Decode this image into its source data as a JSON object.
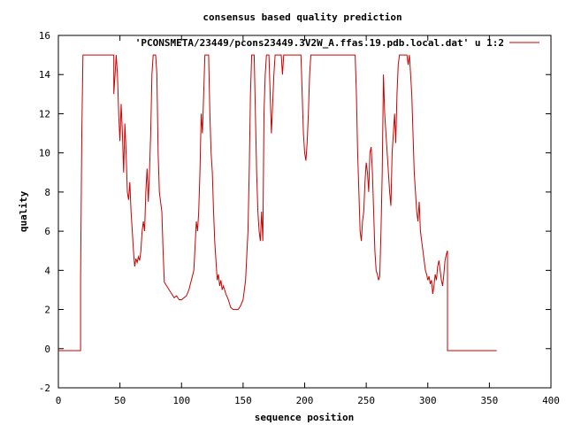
{
  "chart_data": {
    "type": "line",
    "title": "consensus based quality prediction",
    "xlabel": "sequence position",
    "ylabel": "quality",
    "xlim": [
      0,
      400
    ],
    "ylim": [
      -2,
      16
    ],
    "x_ticks": [
      0,
      50,
      100,
      150,
      200,
      250,
      300,
      350,
      400
    ],
    "y_ticks": [
      -2,
      0,
      2,
      4,
      6,
      8,
      10,
      12,
      14,
      16
    ],
    "x_tick_labels": [
      "0",
      "50",
      "100",
      "150",
      "200",
      "250",
      "300",
      "350",
      "400"
    ],
    "y_tick_labels": [
      "-2",
      "0",
      "2",
      "4",
      "6",
      "8",
      "10",
      "12",
      "14",
      "16"
    ],
    "grid": false,
    "legend_position": "top-right",
    "series": [
      {
        "name": "'PCONSMETA/23449/pcons23449.3V2W_A.ffas.19.pdb.local.dat' u 1:2",
        "color": "#cc0000",
        "points": [
          [
            0,
            -0.1
          ],
          [
            18,
            -0.1
          ],
          [
            18,
            3.5
          ],
          [
            19,
            11
          ],
          [
            20,
            15
          ],
          [
            45,
            15
          ],
          [
            45,
            13
          ],
          [
            46,
            14
          ],
          [
            47,
            15
          ],
          [
            48,
            14
          ],
          [
            49,
            12
          ],
          [
            50,
            10.6
          ],
          [
            51,
            12.5
          ],
          [
            52,
            11
          ],
          [
            53,
            9
          ],
          [
            54,
            11.5
          ],
          [
            55,
            10
          ],
          [
            56,
            8
          ],
          [
            57,
            7.6
          ],
          [
            58,
            8.5
          ],
          [
            59,
            7
          ],
          [
            60,
            6
          ],
          [
            61,
            5
          ],
          [
            62,
            4.2
          ],
          [
            63,
            4.6
          ],
          [
            64,
            4.4
          ],
          [
            65,
            4.7
          ],
          [
            66,
            4.5
          ],
          [
            67,
            5
          ],
          [
            68,
            6
          ],
          [
            69,
            6.5
          ],
          [
            70,
            6
          ],
          [
            71,
            8
          ],
          [
            72,
            9.2
          ],
          [
            73,
            7.5
          ],
          [
            74,
            9
          ],
          [
            75,
            11
          ],
          [
            76,
            14
          ],
          [
            77,
            15
          ],
          [
            78,
            15
          ],
          [
            79,
            15
          ],
          [
            80,
            14
          ],
          [
            81,
            10
          ],
          [
            82,
            8
          ],
          [
            83,
            7.5
          ],
          [
            84,
            7
          ],
          [
            85,
            5
          ],
          [
            86,
            3.4
          ],
          [
            88,
            3.2
          ],
          [
            90,
            3
          ],
          [
            92,
            2.8
          ],
          [
            94,
            2.6
          ],
          [
            96,
            2.7
          ],
          [
            98,
            2.5
          ],
          [
            100,
            2.5
          ],
          [
            102,
            2.6
          ],
          [
            104,
            2.7
          ],
          [
            106,
            3
          ],
          [
            108,
            3.5
          ],
          [
            110,
            4
          ],
          [
            112,
            6.5
          ],
          [
            113,
            6
          ],
          [
            114,
            7
          ],
          [
            115,
            9
          ],
          [
            116,
            12
          ],
          [
            117,
            11
          ],
          [
            118,
            13
          ],
          [
            119,
            15
          ],
          [
            122,
            15
          ],
          [
            123,
            12
          ],
          [
            124,
            10
          ],
          [
            125,
            9
          ],
          [
            126,
            7
          ],
          [
            127,
            5.5
          ],
          [
            128,
            4.5
          ],
          [
            129,
            3.5
          ],
          [
            130,
            3.8
          ],
          [
            131,
            3.2
          ],
          [
            132,
            3.5
          ],
          [
            133,
            3
          ],
          [
            134,
            3.2
          ],
          [
            136,
            2.8
          ],
          [
            138,
            2.5
          ],
          [
            140,
            2.1
          ],
          [
            142,
            2
          ],
          [
            144,
            2
          ],
          [
            146,
            2
          ],
          [
            148,
            2.2
          ],
          [
            150,
            2.5
          ],
          [
            152,
            3.5
          ],
          [
            154,
            6
          ],
          [
            155,
            9
          ],
          [
            156,
            13
          ],
          [
            157,
            15
          ],
          [
            159,
            15
          ],
          [
            160,
            12
          ],
          [
            161,
            9
          ],
          [
            162,
            7
          ],
          [
            163,
            6
          ],
          [
            164,
            5.5
          ],
          [
            165,
            7
          ],
          [
            166,
            5.5
          ],
          [
            167,
            12
          ],
          [
            168,
            14
          ],
          [
            169,
            15
          ],
          [
            171,
            15
          ],
          [
            172,
            13
          ],
          [
            173,
            11
          ],
          [
            174,
            12.5
          ],
          [
            175,
            14
          ],
          [
            176,
            15
          ],
          [
            181,
            15
          ],
          [
            182,
            14
          ],
          [
            183,
            15
          ],
          [
            197,
            15
          ],
          [
            198,
            13
          ],
          [
            199,
            11
          ],
          [
            200,
            10
          ],
          [
            201,
            9.6
          ],
          [
            202,
            10.5
          ],
          [
            203,
            12
          ],
          [
            204,
            14
          ],
          [
            205,
            15
          ],
          [
            241,
            15
          ],
          [
            242,
            13
          ],
          [
            243,
            10
          ],
          [
            244,
            8
          ],
          [
            245,
            6
          ],
          [
            246,
            5.5
          ],
          [
            247,
            6.5
          ],
          [
            248,
            7
          ],
          [
            249,
            8.5
          ],
          [
            250,
            9.5
          ],
          [
            251,
            9
          ],
          [
            252,
            8
          ],
          [
            253,
            10
          ],
          [
            254,
            10.3
          ],
          [
            255,
            9
          ],
          [
            256,
            7
          ],
          [
            257,
            5
          ],
          [
            258,
            4
          ],
          [
            259,
            3.8
          ],
          [
            260,
            3.5
          ],
          [
            261,
            3.7
          ],
          [
            262,
            6
          ],
          [
            263,
            9
          ],
          [
            264,
            14
          ],
          [
            265,
            12
          ],
          [
            266,
            11
          ],
          [
            267,
            10
          ],
          [
            268,
            9
          ],
          [
            269,
            8
          ],
          [
            270,
            7.3
          ],
          [
            271,
            10
          ],
          [
            272,
            11
          ],
          [
            273,
            12
          ],
          [
            274,
            10.5
          ],
          [
            275,
            13
          ],
          [
            276,
            14.5
          ],
          [
            277,
            15
          ],
          [
            283,
            15
          ],
          [
            284,
            14.5
          ],
          [
            285,
            15
          ],
          [
            286,
            14
          ],
          [
            287,
            13
          ],
          [
            288,
            11
          ],
          [
            289,
            9
          ],
          [
            290,
            8
          ],
          [
            291,
            7
          ],
          [
            292,
            6.5
          ],
          [
            293,
            7.5
          ],
          [
            294,
            6
          ],
          [
            295,
            5.5
          ],
          [
            296,
            5
          ],
          [
            297,
            4.5
          ],
          [
            298,
            4
          ],
          [
            299,
            3.8
          ],
          [
            300,
            3.5
          ],
          [
            301,
            3.7
          ],
          [
            302,
            3.3
          ],
          [
            303,
            3.5
          ],
          [
            304,
            2.8
          ],
          [
            305,
            3.2
          ],
          [
            306,
            3.8
          ],
          [
            307,
            3.5
          ],
          [
            308,
            4.2
          ],
          [
            309,
            4.5
          ],
          [
            310,
            4
          ],
          [
            311,
            3.5
          ],
          [
            312,
            3.2
          ],
          [
            313,
            3.8
          ],
          [
            314,
            4.5
          ],
          [
            315,
            4.8
          ],
          [
            316,
            5
          ],
          [
            316,
            -0.1
          ],
          [
            356,
            -0.1
          ]
        ]
      }
    ]
  }
}
